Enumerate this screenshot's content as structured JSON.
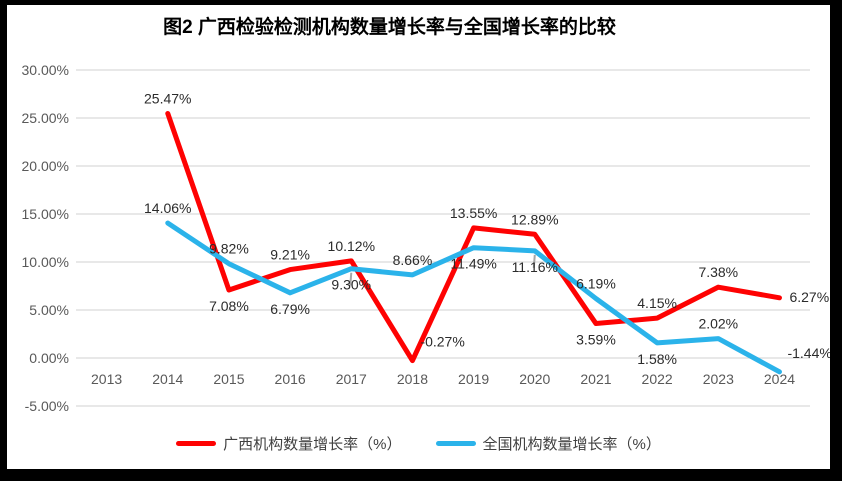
{
  "title": "图2 广西检验检测机构数量增长率与全国增长率的比较",
  "colors": {
    "guangxi_line": "#fe0202",
    "national_line": "#2bb3ea",
    "gridline": "#d9d9d9",
    "axis_text": "#595959",
    "data_label_text": "#2b2b2b",
    "frame_border": "#000000",
    "background": "#ffffff"
  },
  "legend": {
    "items": [
      {
        "label": "广西机构数量增长率（%）",
        "color": "#fe0202"
      },
      {
        "label": "全国机构数量增长率（%）",
        "color": "#2bb3ea"
      }
    ]
  },
  "chart_data": {
    "type": "line",
    "categories": [
      "2013",
      "2014",
      "2015",
      "2016",
      "2017",
      "2018",
      "2019",
      "2020",
      "2021",
      "2022",
      "2023",
      "2024"
    ],
    "series": [
      {
        "name": "广西机构数量增长率（%）",
        "color": "#fe0202",
        "values": [
          null,
          25.47,
          7.08,
          9.21,
          10.12,
          -0.27,
          13.55,
          12.89,
          3.59,
          4.15,
          7.38,
          6.27
        ],
        "labels": [
          "",
          "25.47%",
          "7.08%",
          "9.21%",
          "10.12%",
          "-0.27%",
          "13.55%",
          "12.89%",
          "3.59%",
          "4.15%",
          "7.38%",
          "6.27%"
        ],
        "label_pos": [
          "",
          "a",
          "b",
          "a",
          "a",
          "ru",
          "a",
          "a",
          "b",
          "a",
          "a",
          "r"
        ]
      },
      {
        "name": "全国机构数量增长率（%）",
        "color": "#2bb3ea",
        "values": [
          null,
          14.06,
          9.82,
          6.79,
          9.3,
          8.66,
          11.49,
          11.16,
          6.19,
          1.58,
          2.02,
          -1.44
        ],
        "labels": [
          "",
          "14.06%",
          "9.82%",
          "6.79%",
          "9.30%",
          "8.66%",
          "11.49%",
          "11.16%",
          "6.19%",
          "1.58%",
          "2.02%",
          "-1.44%"
        ],
        "label_pos": [
          "",
          "a",
          "a",
          "b",
          "b",
          "a",
          "b",
          "b",
          "a",
          "b",
          "a",
          "ru"
        ]
      }
    ],
    "y_ticks": {
      "labels": [
        "30.00%",
        "25.00%",
        "20.00%",
        "15.00%",
        "10.00%",
        "5.00%",
        "0.00%",
        "-5.00%"
      ],
      "values": [
        30,
        25,
        20,
        15,
        10,
        5,
        0,
        -5
      ]
    },
    "ylim": [
      -5,
      30
    ],
    "xlabel": "",
    "ylabel": "",
    "grid": "horizontal",
    "legend_position": "bottom",
    "layout_hints": {
      "line_width": 5,
      "draw_order": "series 1 (red) first, series 2 (blue) on top",
      "leader_lines": [
        {
          "series": 1,
          "index": 4
        },
        {
          "series": 1,
          "index": 7
        }
      ]
    }
  }
}
